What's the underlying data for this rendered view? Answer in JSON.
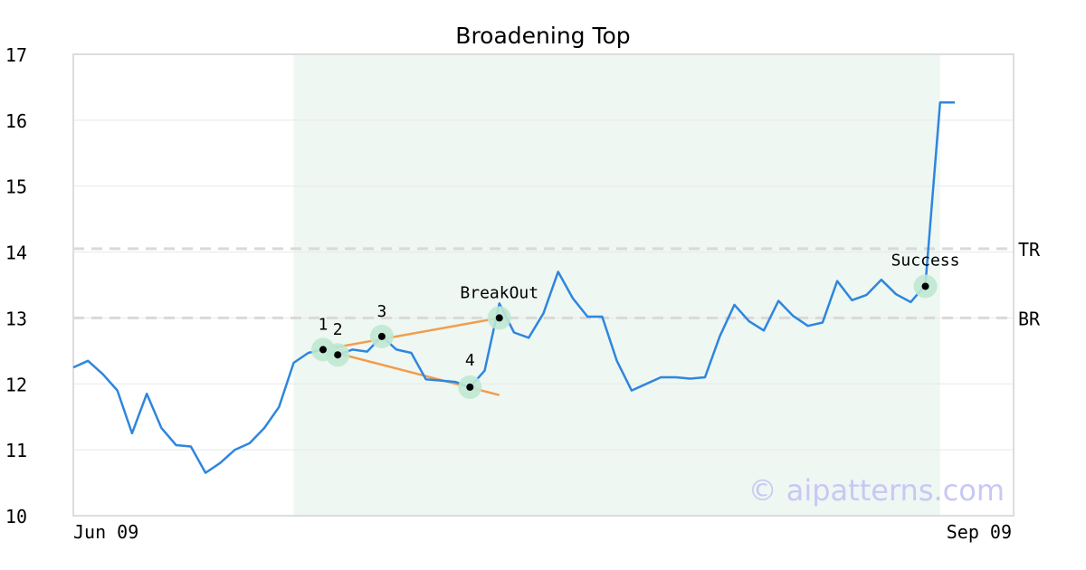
{
  "chart_data": {
    "type": "line",
    "title": "Broadening Top",
    "xlabel": "",
    "ylabel": "",
    "ylim": [
      10,
      17
    ],
    "y_ticks": [
      10,
      11,
      12,
      13,
      14,
      15,
      16,
      17
    ],
    "x_tick_labels": [
      "Jun 09",
      "Sep 09"
    ],
    "grid": "horizontal",
    "line_color": "#2e86de",
    "pattern_color": "#f39c4a",
    "highlight_fill": "#eef7f2",
    "marker_halo_color": "#bfe8d3",
    "watermark": "© aipatterns.com",
    "series": [
      {
        "values": [
          12.25,
          12.35,
          12.15,
          11.9,
          11.25,
          11.85,
          11.33,
          11.07,
          11.05,
          10.65,
          10.8,
          11.0,
          11.1,
          11.33,
          11.65,
          12.32,
          12.47,
          12.52,
          12.44,
          12.52,
          12.49,
          12.72,
          12.52,
          12.47,
          12.07,
          12.05,
          12.03,
          11.95,
          12.2,
          13.22,
          12.78,
          12.7,
          13.07,
          13.7,
          13.3,
          13.02,
          13.02,
          12.35,
          11.9,
          12.0,
          12.1,
          12.1,
          12.08,
          12.1,
          12.72,
          13.2,
          12.95,
          12.81,
          13.26,
          13.03,
          12.88,
          12.93,
          13.56,
          13.27,
          13.35,
          13.58,
          13.36,
          13.24,
          13.5,
          16.27,
          16.27
        ]
      }
    ],
    "highlight_range": {
      "x_start": 15,
      "x_end": 59
    },
    "reference_lines": [
      {
        "label": "TR",
        "y": 14.05
      },
      {
        "label": "BR",
        "y": 13.0
      }
    ],
    "pattern_points": [
      {
        "label": "1",
        "x": 17,
        "y": 12.52
      },
      {
        "label": "2",
        "x": 18,
        "y": 12.44
      },
      {
        "label": "3",
        "x": 21,
        "y": 12.72
      },
      {
        "label": "4",
        "x": 27,
        "y": 11.95
      },
      {
        "label": "BreakOut",
        "x": 29,
        "y": 13.0
      },
      {
        "label": "Success",
        "x": 58,
        "y": 13.48
      }
    ],
    "trend_lines": [
      {
        "from": {
          "x": 17,
          "y": 12.52
        },
        "to": {
          "x": 29,
          "y": 13.0
        }
      },
      {
        "from": {
          "x": 17,
          "y": 12.52
        },
        "to": {
          "x": 29,
          "y": 11.83
        }
      }
    ]
  }
}
